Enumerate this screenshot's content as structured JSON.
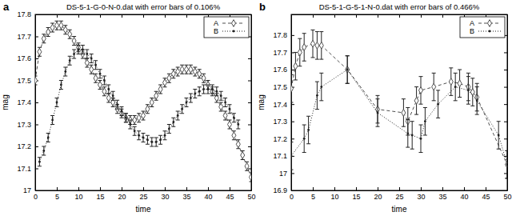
{
  "chart_data": [
    {
      "type": "line",
      "annotation": "a",
      "title": "DS-5-1-G-0-N-0.dat with error bars of 0.106%",
      "x_label": "time",
      "y_label": "mag",
      "xlim": [
        0,
        50
      ],
      "xticks": [
        0,
        5,
        10,
        15,
        20,
        25,
        30,
        35,
        40,
        45,
        50
      ],
      "ylim": [
        17,
        17.8
      ],
      "yticks": [
        17,
        17.1,
        17.2,
        17.3,
        17.4,
        17.5,
        17.6,
        17.7,
        17.8
      ],
      "grid": false,
      "legend": "top-right",
      "series": [
        {
          "name": "A",
          "color": "#505050",
          "marker": "diamond",
          "line_style": "dashed",
          "x": [
            0,
            1,
            2,
            3,
            4,
            5,
            6,
            7,
            8,
            9,
            10,
            11,
            12,
            13,
            14,
            15,
            16,
            17,
            18,
            19,
            20,
            21,
            22,
            23,
            24,
            25,
            26,
            27,
            28,
            29,
            30,
            31,
            32,
            33,
            34,
            35,
            36,
            37,
            38,
            39,
            40,
            41,
            42,
            43,
            44,
            45,
            46,
            47,
            48,
            49,
            50
          ],
          "values": [
            17.5,
            17.63,
            17.69,
            17.72,
            17.74,
            17.75,
            17.75,
            17.73,
            17.71,
            17.68,
            17.65,
            17.62,
            17.58,
            17.55,
            17.51,
            17.48,
            17.45,
            17.42,
            17.4,
            17.37,
            17.35,
            17.33,
            17.32,
            17.32,
            17.33,
            17.34,
            17.37,
            17.4,
            17.43,
            17.46,
            17.49,
            17.51,
            17.53,
            17.54,
            17.55,
            17.55,
            17.55,
            17.54,
            17.53,
            17.51,
            17.48,
            17.45,
            17.42,
            17.38,
            17.34,
            17.3,
            17.25,
            17.21,
            17.16,
            17.11,
            17.06
          ],
          "errors": [
            0.02,
            0.02,
            0.02,
            0.02,
            0.02,
            0.02,
            0.02,
            0.02,
            0.02,
            0.02,
            0.02,
            0.02,
            0.02,
            0.02,
            0.02,
            0.02,
            0.02,
            0.02,
            0.02,
            0.02,
            0.02,
            0.02,
            0.02,
            0.02,
            0.02,
            0.02,
            0.02,
            0.02,
            0.02,
            0.02,
            0.02,
            0.02,
            0.02,
            0.02,
            0.02,
            0.02,
            0.02,
            0.02,
            0.02,
            0.02,
            0.02,
            0.02,
            0.02,
            0.02,
            0.02,
            0.02,
            0.02,
            0.02,
            0.02,
            0.02,
            0.02
          ]
        },
        {
          "name": "B",
          "color": "#202020",
          "marker": "point",
          "line_style": "dotted",
          "x": [
            1,
            2,
            3,
            4,
            5,
            6,
            7,
            8,
            9,
            10,
            11,
            12,
            13,
            14,
            15,
            16,
            17,
            18,
            19,
            20,
            21,
            22,
            23,
            24,
            25,
            26,
            27,
            28,
            29,
            30,
            31,
            32,
            33,
            34,
            35,
            36,
            37,
            38,
            39,
            40,
            41,
            42,
            43,
            44,
            45,
            46,
            47
          ],
          "values": [
            17.13,
            17.18,
            17.24,
            17.32,
            17.4,
            17.48,
            17.54,
            17.59,
            17.62,
            17.64,
            17.64,
            17.62,
            17.6,
            17.57,
            17.53,
            17.5,
            17.46,
            17.43,
            17.39,
            17.36,
            17.33,
            17.3,
            17.27,
            17.25,
            17.24,
            17.23,
            17.22,
            17.22,
            17.23,
            17.25,
            17.28,
            17.31,
            17.34,
            17.37,
            17.4,
            17.42,
            17.44,
            17.45,
            17.46,
            17.46,
            17.46,
            17.45,
            17.43,
            17.4,
            17.37,
            17.33,
            17.3
          ],
          "errors": [
            0.02,
            0.02,
            0.02,
            0.02,
            0.02,
            0.02,
            0.02,
            0.02,
            0.02,
            0.02,
            0.02,
            0.02,
            0.02,
            0.02,
            0.02,
            0.02,
            0.02,
            0.02,
            0.02,
            0.02,
            0.02,
            0.02,
            0.02,
            0.02,
            0.02,
            0.02,
            0.02,
            0.02,
            0.02,
            0.02,
            0.02,
            0.02,
            0.02,
            0.02,
            0.02,
            0.02,
            0.02,
            0.02,
            0.02,
            0.02,
            0.02,
            0.02,
            0.02,
            0.02,
            0.02,
            0.02,
            0.02
          ]
        }
      ]
    },
    {
      "type": "line",
      "annotation": "b",
      "title": "DS-5-1-G-5-1-N-0.dat with error bars of 0.466%",
      "x_label": "time",
      "y_label": "mag",
      "xlim": [
        0,
        50
      ],
      "xticks": [
        0,
        5,
        10,
        15,
        20,
        25,
        30,
        35,
        40,
        45,
        50
      ],
      "ylim": [
        16.9,
        17.92
      ],
      "yticks": [
        16.9,
        17,
        17.1,
        17.2,
        17.3,
        17.4,
        17.5,
        17.6,
        17.7,
        17.8
      ],
      "grid": false,
      "legend": "top-right",
      "series": [
        {
          "name": "A",
          "color": "#505050",
          "marker": "diamond",
          "line_style": "dashed",
          "x": [
            0,
            1,
            2,
            3,
            5,
            6,
            7,
            13,
            20,
            26,
            27,
            29,
            30,
            33,
            37,
            39,
            41,
            42,
            43,
            50
          ],
          "values": [
            17.49,
            17.62,
            17.7,
            17.73,
            17.75,
            17.74,
            17.74,
            17.6,
            17.37,
            17.35,
            17.3,
            17.42,
            17.48,
            17.5,
            17.53,
            17.52,
            17.5,
            17.47,
            17.44,
            17.05
          ],
          "errors": [
            0.08,
            0.08,
            0.08,
            0.08,
            0.08,
            0.08,
            0.08,
            0.08,
            0.08,
            0.08,
            0.08,
            0.08,
            0.08,
            0.08,
            0.08,
            0.08,
            0.08,
            0.08,
            0.08,
            0.08
          ]
        },
        {
          "name": "B",
          "color": "#202020",
          "marker": "point",
          "line_style": "dotted",
          "x": [
            0,
            3,
            4,
            6,
            7,
            13,
            20,
            27,
            28,
            30,
            31,
            34,
            38,
            41,
            43,
            48,
            50
          ],
          "values": [
            17.1,
            17.2,
            17.25,
            17.45,
            17.5,
            17.6,
            17.35,
            17.23,
            17.22,
            17.2,
            17.3,
            17.4,
            17.5,
            17.48,
            17.42,
            17.22,
            17.05
          ],
          "errors": [
            0.08,
            0.08,
            0.08,
            0.08,
            0.08,
            0.08,
            0.08,
            0.08,
            0.08,
            0.08,
            0.08,
            0.08,
            0.08,
            0.08,
            0.08,
            0.08,
            0.08
          ]
        }
      ]
    }
  ]
}
